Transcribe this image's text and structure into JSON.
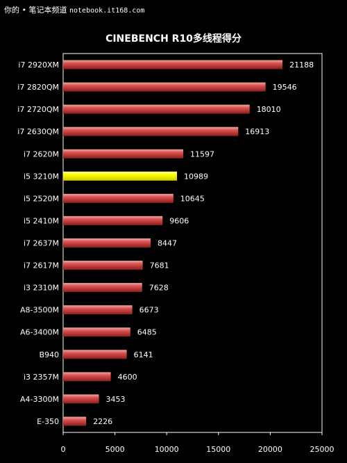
{
  "watermark": {
    "brand": "你的 • 笔记本频道",
    "url": "notebook.it168.com"
  },
  "chart_data": {
    "type": "bar",
    "orientation": "horizontal",
    "title": "CINEBENCH R10多线程得分",
    "categories": [
      "i7 2920XM",
      "i7 2820QM",
      "i7 2720QM",
      "i7 2630QM",
      "i7 2620M",
      "i5 3210M",
      "i5 2520M",
      "i5 2410M",
      "i7 2637M",
      "i7 2617M",
      "i3 2310M",
      "A8-3500M",
      "A6-3400M",
      "B940",
      "i3 2357M",
      "A4-3300M",
      "E-350"
    ],
    "values": [
      21188,
      19546,
      18010,
      16913,
      11597,
      10989,
      10645,
      9606,
      8447,
      7681,
      7628,
      6673,
      6485,
      6141,
      4600,
      3453,
      2226
    ],
    "highlight": "i5 3210M",
    "xlim": [
      0,
      25000
    ],
    "xticks": [
      0,
      5000,
      10000,
      15000,
      20000,
      25000
    ],
    "xlabel": "",
    "ylabel": "",
    "grid": false,
    "colors": {
      "bar": "#d9534f",
      "bar_dark": "#8b1e1e",
      "bar_light": "#f2a6a0",
      "highlight": "#ffff00",
      "plot_border": "#ffffff",
      "text": "#ffffff",
      "background": "#000000"
    }
  }
}
